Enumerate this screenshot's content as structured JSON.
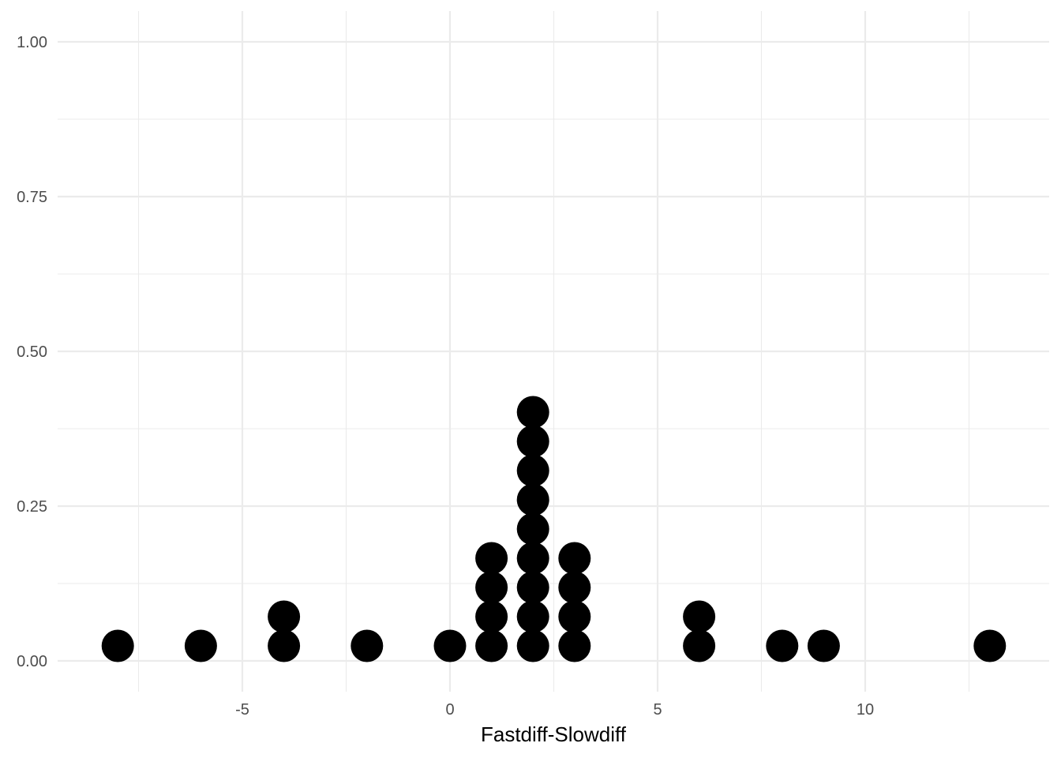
{
  "chart_data": {
    "type": "scatter",
    "subtype": "dotplot",
    "title": "",
    "xlabel": "Fastdiff-Slowdiff",
    "ylabel": "",
    "x_ticks": [
      "-5",
      "0",
      "5",
      "10"
    ],
    "y_ticks": [
      "0.00",
      "0.25",
      "0.50",
      "0.75",
      "1.00"
    ],
    "xlim": [
      -8.6,
      13.6
    ],
    "ylim": [
      -0.05,
      1.05
    ],
    "grid": true,
    "legend": "none",
    "dot_color": "#000000",
    "stacks": [
      {
        "x": -8,
        "count": 1
      },
      {
        "x": -6,
        "count": 1
      },
      {
        "x": -4,
        "count": 2
      },
      {
        "x": -2,
        "count": 1
      },
      {
        "x": 0,
        "count": 1
      },
      {
        "x": 1,
        "count": 4
      },
      {
        "x": 2,
        "count": 9
      },
      {
        "x": 3,
        "count": 4
      },
      {
        "x": 6,
        "count": 2
      },
      {
        "x": 8,
        "count": 1
      },
      {
        "x": 9,
        "count": 1
      },
      {
        "x": 13,
        "count": 1
      }
    ]
  }
}
